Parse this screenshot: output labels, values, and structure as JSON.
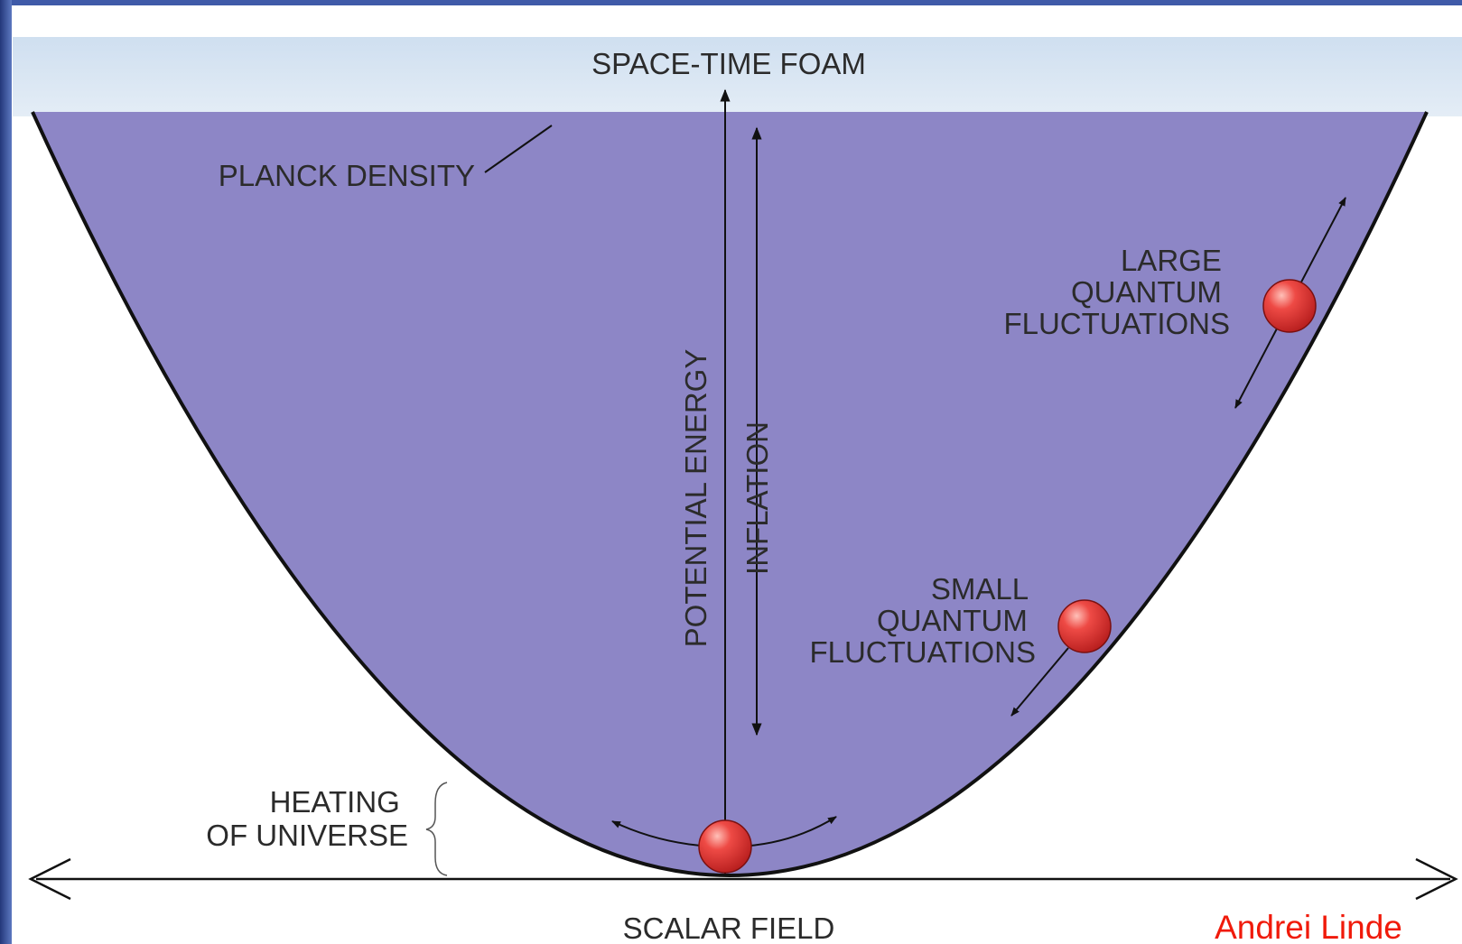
{
  "title": "SPACE-TIME FOAM",
  "labels": {
    "planck_density": "PLANCK DENSITY",
    "large_fluctuations": [
      "LARGE",
      "QUANTUM",
      "FLUCTUATIONS"
    ],
    "small_fluctuations": [
      "SMALL",
      "QUANTUM",
      "FLUCTUATIONS"
    ],
    "potential_energy": "POTENTIAL ENERGY",
    "inflation": "INFLATION",
    "heating": [
      "HEATING",
      "OF UNIVERSE"
    ],
    "scalar_field": "SCALAR FIELD",
    "credit": "Andrei Linde"
  }
}
